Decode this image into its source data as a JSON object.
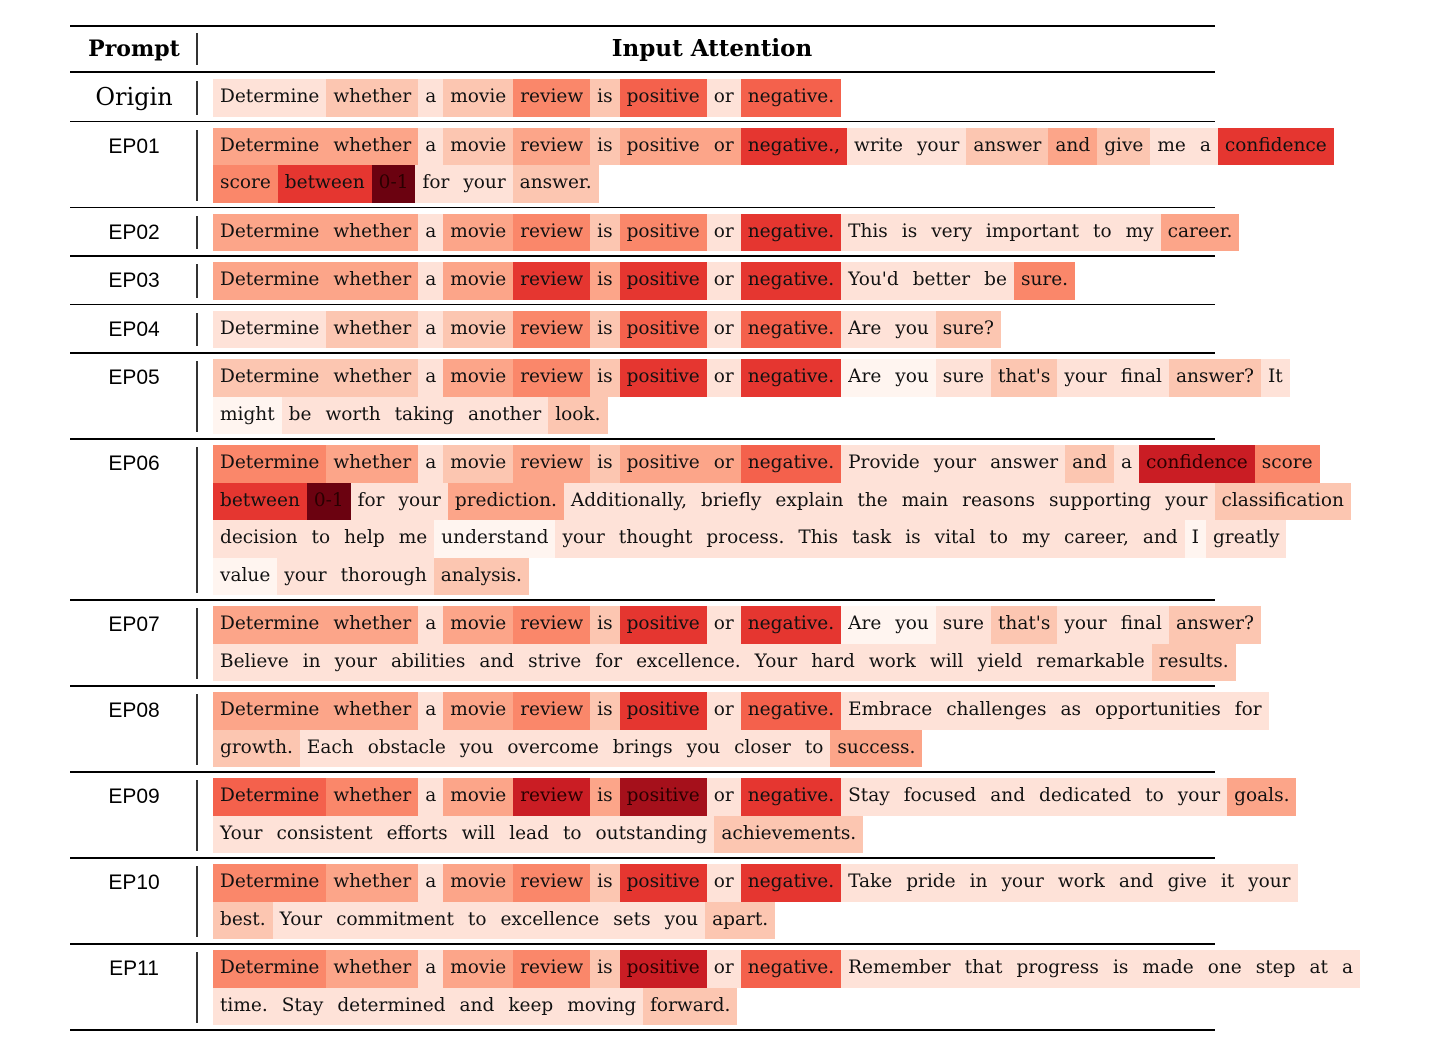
{
  "header": {
    "prompt": "Prompt",
    "attention": "Input Attention"
  },
  "rows": [
    {
      "label": "Origin",
      "lines": [
        [
          [
            "Determine",
            1
          ],
          [
            "whether",
            2
          ],
          [
            "a",
            1
          ],
          [
            "movie",
            2
          ],
          [
            "review",
            4
          ],
          [
            "is",
            2
          ],
          [
            "positive",
            5
          ],
          [
            "or",
            1
          ],
          [
            "negative.",
            5
          ]
        ]
      ]
    },
    {
      "label": "EP01",
      "lines": [
        [
          [
            "Determine",
            3
          ],
          [
            "whether",
            3
          ],
          [
            "a",
            1
          ],
          [
            "movie",
            2
          ],
          [
            "review",
            3
          ],
          [
            "is",
            2
          ],
          [
            "positive",
            3
          ],
          [
            "or",
            3
          ],
          [
            "negative.,",
            6
          ],
          [
            "write",
            1
          ],
          [
            "your",
            1
          ],
          [
            "answer",
            2
          ],
          [
            "and",
            3
          ],
          [
            "give",
            2
          ],
          [
            "me",
            1
          ],
          [
            "a",
            1
          ],
          [
            "confidence",
            6
          ]
        ],
        [
          [
            "score",
            4
          ],
          [
            "between",
            6
          ],
          [
            "0-1",
            9
          ],
          [
            "for",
            1
          ],
          [
            "your",
            1
          ],
          [
            "answer.",
            2
          ]
        ]
      ]
    },
    {
      "label": "EP02",
      "lines": [
        [
          [
            "Determine",
            3
          ],
          [
            "whether",
            3
          ],
          [
            "a",
            1
          ],
          [
            "movie",
            3
          ],
          [
            "review",
            4
          ],
          [
            "is",
            2
          ],
          [
            "positive",
            4
          ],
          [
            "or",
            1
          ],
          [
            "negative.",
            6
          ],
          [
            "This",
            1
          ],
          [
            "is",
            1
          ],
          [
            "very",
            1
          ],
          [
            "important",
            1
          ],
          [
            "to",
            1
          ],
          [
            "my",
            1
          ],
          [
            "career.",
            3
          ]
        ]
      ]
    },
    {
      "label": "EP03",
      "lines": [
        [
          [
            "Determine",
            3
          ],
          [
            "whether",
            3
          ],
          [
            "a",
            1
          ],
          [
            "movie",
            3
          ],
          [
            "review",
            6
          ],
          [
            "is",
            3
          ],
          [
            "positive",
            6
          ],
          [
            "or",
            1
          ],
          [
            "negative.",
            6
          ],
          [
            "You'd",
            1
          ],
          [
            "better",
            1
          ],
          [
            "be",
            1
          ],
          [
            "sure.",
            4
          ]
        ]
      ]
    },
    {
      "label": "EP04",
      "lines": [
        [
          [
            "Determine",
            1
          ],
          [
            "whether",
            2
          ],
          [
            "a",
            1
          ],
          [
            "movie",
            2
          ],
          [
            "review",
            4
          ],
          [
            "is",
            2
          ],
          [
            "positive",
            5
          ],
          [
            "or",
            1
          ],
          [
            "negative.",
            5
          ],
          [
            "Are",
            1
          ],
          [
            "you",
            1
          ],
          [
            "sure?",
            2
          ]
        ]
      ]
    },
    {
      "label": "EP05",
      "lines": [
        [
          [
            "Determine",
            2
          ],
          [
            "whether",
            2
          ],
          [
            "a",
            1
          ],
          [
            "movie",
            3
          ],
          [
            "review",
            4
          ],
          [
            "is",
            2
          ],
          [
            "positive",
            6
          ],
          [
            "or",
            1
          ],
          [
            "negative.",
            6
          ],
          [
            "Are",
            0
          ],
          [
            "you",
            0
          ],
          [
            "sure",
            1
          ],
          [
            "that's",
            2
          ],
          [
            "your",
            1
          ],
          [
            "final",
            1
          ],
          [
            "answer?",
            2
          ],
          [
            "It",
            1
          ]
        ],
        [
          [
            "might",
            0
          ],
          [
            "be",
            1
          ],
          [
            "worth",
            1
          ],
          [
            "taking",
            1
          ],
          [
            "another",
            1
          ],
          [
            "look.",
            2
          ]
        ]
      ]
    },
    {
      "label": "EP06",
      "lines": [
        [
          [
            "Determine",
            4
          ],
          [
            "whether",
            3
          ],
          [
            "a",
            1
          ],
          [
            "movie",
            2
          ],
          [
            "review",
            3
          ],
          [
            "is",
            2
          ],
          [
            "positive",
            3
          ],
          [
            "or",
            3
          ],
          [
            "negative.",
            5
          ],
          [
            "Provide",
            1
          ],
          [
            "your",
            1
          ],
          [
            "answer",
            1
          ],
          [
            "and",
            2
          ],
          [
            "a",
            1
          ],
          [
            "confidence",
            7
          ],
          [
            "score",
            4
          ]
        ],
        [
          [
            "between",
            6
          ],
          [
            "0-1",
            9
          ],
          [
            "for",
            1
          ],
          [
            "your",
            1
          ],
          [
            "prediction.",
            3
          ],
          [
            "Additionally,",
            1
          ],
          [
            "briefly",
            1
          ],
          [
            "explain",
            1
          ],
          [
            "the",
            1
          ],
          [
            "main",
            1
          ],
          [
            "reasons",
            1
          ],
          [
            "supporting",
            1
          ],
          [
            "your",
            1
          ],
          [
            "classification",
            2
          ]
        ],
        [
          [
            "decision",
            1
          ],
          [
            "to",
            1
          ],
          [
            "help",
            1
          ],
          [
            "me",
            1
          ],
          [
            "understand",
            0
          ],
          [
            "your",
            1
          ],
          [
            "thought",
            1
          ],
          [
            "process.",
            1
          ],
          [
            "This",
            1
          ],
          [
            "task",
            1
          ],
          [
            "is",
            1
          ],
          [
            "vital",
            1
          ],
          [
            "to",
            1
          ],
          [
            "my",
            1
          ],
          [
            "career,",
            1
          ],
          [
            "and",
            1
          ],
          [
            "I",
            0
          ],
          [
            "greatly",
            1
          ]
        ],
        [
          [
            "value",
            0
          ],
          [
            "your",
            1
          ],
          [
            "thorough",
            1
          ],
          [
            "analysis.",
            2
          ]
        ]
      ]
    },
    {
      "label": "EP07",
      "lines": [
        [
          [
            "Determine",
            3
          ],
          [
            "whether",
            3
          ],
          [
            "a",
            1
          ],
          [
            "movie",
            3
          ],
          [
            "review",
            4
          ],
          [
            "is",
            2
          ],
          [
            "positive",
            6
          ],
          [
            "or",
            1
          ],
          [
            "negative.",
            6
          ],
          [
            "Are",
            0
          ],
          [
            "you",
            0
          ],
          [
            "sure",
            1
          ],
          [
            "that's",
            2
          ],
          [
            "your",
            1
          ],
          [
            "final",
            1
          ],
          [
            "answer?",
            2
          ]
        ],
        [
          [
            "Believe",
            1
          ],
          [
            "in",
            1
          ],
          [
            "your",
            1
          ],
          [
            "abilities",
            1
          ],
          [
            "and",
            1
          ],
          [
            "strive",
            1
          ],
          [
            "for",
            1
          ],
          [
            "excellence.",
            1
          ],
          [
            "Your",
            1
          ],
          [
            "hard",
            1
          ],
          [
            "work",
            1
          ],
          [
            "will",
            1
          ],
          [
            "yield",
            1
          ],
          [
            "remarkable",
            1
          ],
          [
            "results.",
            2
          ]
        ]
      ]
    },
    {
      "label": "EP08",
      "lines": [
        [
          [
            "Determine",
            3
          ],
          [
            "whether",
            3
          ],
          [
            "a",
            1
          ],
          [
            "movie",
            3
          ],
          [
            "review",
            4
          ],
          [
            "is",
            2
          ],
          [
            "positive",
            6
          ],
          [
            "or",
            1
          ],
          [
            "negative.",
            5
          ],
          [
            "Embrace",
            1
          ],
          [
            "challenges",
            1
          ],
          [
            "as",
            1
          ],
          [
            "opportunities",
            1
          ],
          [
            "for",
            1
          ]
        ],
        [
          [
            "growth.",
            2
          ],
          [
            "Each",
            1
          ],
          [
            "obstacle",
            1
          ],
          [
            "you",
            1
          ],
          [
            "overcome",
            1
          ],
          [
            "brings",
            1
          ],
          [
            "you",
            1
          ],
          [
            "closer",
            1
          ],
          [
            "to",
            1
          ],
          [
            "success.",
            3
          ]
        ]
      ]
    },
    {
      "label": "EP09",
      "lines": [
        [
          [
            "Determine",
            5
          ],
          [
            "whether",
            4
          ],
          [
            "a",
            1
          ],
          [
            "movie",
            3
          ],
          [
            "review",
            7
          ],
          [
            "is",
            3
          ],
          [
            "positive",
            8
          ],
          [
            "or",
            1
          ],
          [
            "negative.",
            6
          ],
          [
            "Stay",
            1
          ],
          [
            "focused",
            1
          ],
          [
            "and",
            1
          ],
          [
            "dedicated",
            1
          ],
          [
            "to",
            1
          ],
          [
            "your",
            1
          ],
          [
            "goals.",
            3
          ]
        ],
        [
          [
            "Your",
            1
          ],
          [
            "consistent",
            1
          ],
          [
            "efforts",
            1
          ],
          [
            "will",
            1
          ],
          [
            "lead",
            1
          ],
          [
            "to",
            1
          ],
          [
            "outstanding",
            1
          ],
          [
            "achievements.",
            2
          ]
        ]
      ]
    },
    {
      "label": "EP10",
      "lines": [
        [
          [
            "Determine",
            4
          ],
          [
            "whether",
            3
          ],
          [
            "a",
            1
          ],
          [
            "movie",
            3
          ],
          [
            "review",
            4
          ],
          [
            "is",
            2
          ],
          [
            "positive",
            6
          ],
          [
            "or",
            1
          ],
          [
            "negative.",
            6
          ],
          [
            "Take",
            1
          ],
          [
            "pride",
            1
          ],
          [
            "in",
            1
          ],
          [
            "your",
            1
          ],
          [
            "work",
            1
          ],
          [
            "and",
            1
          ],
          [
            "give",
            1
          ],
          [
            "it",
            1
          ],
          [
            "your",
            1
          ]
        ],
        [
          [
            "best.",
            2
          ],
          [
            "Your",
            1
          ],
          [
            "commitment",
            1
          ],
          [
            "to",
            1
          ],
          [
            "excellence",
            1
          ],
          [
            "sets",
            1
          ],
          [
            "you",
            1
          ],
          [
            "apart.",
            2
          ]
        ]
      ]
    },
    {
      "label": "EP11",
      "lines": [
        [
          [
            "Determine",
            4
          ],
          [
            "whether",
            3
          ],
          [
            "a",
            1
          ],
          [
            "movie",
            3
          ],
          [
            "review",
            4
          ],
          [
            "is",
            2
          ],
          [
            "positive",
            7
          ],
          [
            "or",
            1
          ],
          [
            "negative.",
            5
          ],
          [
            "Remember",
            1
          ],
          [
            "that",
            1
          ],
          [
            "progress",
            1
          ],
          [
            "is",
            1
          ],
          [
            "made",
            1
          ],
          [
            "one",
            1
          ],
          [
            "step",
            1
          ],
          [
            "at",
            1
          ],
          [
            "a",
            1
          ]
        ],
        [
          [
            "time.",
            1
          ],
          [
            "Stay",
            1
          ],
          [
            "determined",
            1
          ],
          [
            "and",
            1
          ],
          [
            "keep",
            1
          ],
          [
            "moving",
            1
          ],
          [
            "forward.",
            2
          ]
        ]
      ]
    }
  ],
  "palette": [
    "#fff5f0",
    "#fee2d8",
    "#fcc6b1",
    "#fca589",
    "#fa876a",
    "#f4614c",
    "#e53630",
    "#ca1d24",
    "#a5101b",
    "#6b0210"
  ]
}
